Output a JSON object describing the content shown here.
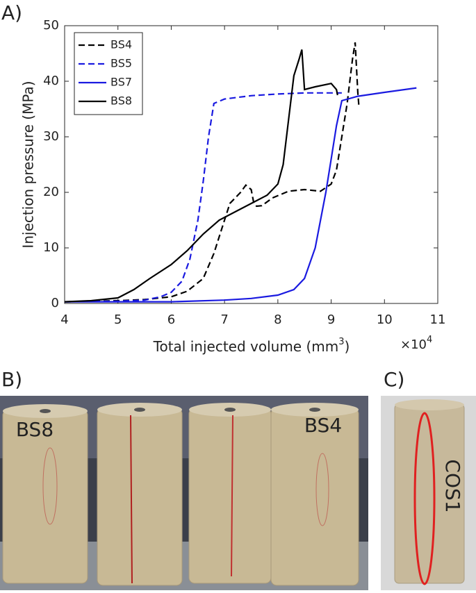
{
  "chart_data": {
    "type": "line",
    "panel_label": "A)",
    "xlabel": [
      "Total injected volume (mm",
      "3",
      ")"
    ],
    "ylabel": "Injection pressure (MPa)",
    "x_multiplier": {
      "base": "×10",
      "exponent": "4"
    },
    "xlim": [
      4,
      11
    ],
    "xticks": [
      4,
      5,
      6,
      7,
      8,
      9,
      10,
      11
    ],
    "ylim": [
      0,
      50
    ],
    "yticks": [
      0,
      10,
      20,
      30,
      40,
      50
    ],
    "grid": false,
    "legend": "top-left",
    "series": [
      {
        "name": "BS4",
        "color": "#000000",
        "dash": "dashed",
        "x": [
          4,
          5,
          5.5,
          6,
          6.3,
          6.6,
          6.8,
          7,
          7.1,
          7.3,
          7.4,
          7.5,
          7.55,
          7.6,
          7.7,
          7.9,
          8.2,
          8.5,
          8.8,
          9,
          9.1,
          9.2,
          9.3,
          9.35,
          9.4,
          9.45,
          9.5,
          9.52
        ],
        "values": [
          0.3,
          0.5,
          0.7,
          1.2,
          2.2,
          4.5,
          9,
          15,
          18,
          20,
          21.3,
          20.5,
          18,
          17.5,
          17.6,
          19,
          20.2,
          20.5,
          20.2,
          21.5,
          24,
          30,
          36,
          40,
          44,
          47,
          38,
          35.5
        ]
      },
      {
        "name": "BS5",
        "color": "#1a1ae0",
        "dash": "dashed",
        "x": [
          4,
          5,
          5.5,
          5.8,
          6,
          6.2,
          6.35,
          6.5,
          6.6,
          6.7,
          6.8,
          7,
          7.5,
          8,
          8.5,
          9.2
        ],
        "values": [
          0.3,
          0.4,
          0.6,
          1.2,
          2,
          4,
          8,
          15,
          22,
          30,
          36,
          36.8,
          37.4,
          37.7,
          37.9,
          37.9
        ]
      },
      {
        "name": "BS7",
        "color": "#1a1ae0",
        "dash": "solid",
        "x": [
          4,
          6,
          7,
          7.5,
          8,
          8.3,
          8.5,
          8.7,
          8.9,
          9,
          9.1,
          9.2,
          9.5,
          10,
          10.6
        ],
        "values": [
          0.3,
          0.3,
          0.6,
          0.9,
          1.5,
          2.5,
          4.5,
          10,
          20,
          26,
          32,
          36.5,
          37.3,
          38,
          38.8
        ]
      },
      {
        "name": "BS8",
        "color": "#000000",
        "dash": "solid",
        "x": [
          4,
          4.5,
          5,
          5.3,
          5.6,
          6,
          6.3,
          6.6,
          6.9,
          7.2,
          7.6,
          7.8,
          8,
          8.1,
          8.2,
          8.3,
          8.4,
          8.45,
          8.5,
          8.7,
          9,
          9.1,
          9.12
        ],
        "values": [
          0.3,
          0.5,
          1,
          2.5,
          4.5,
          7,
          9.5,
          12.5,
          15,
          16.5,
          18.5,
          19.5,
          21.5,
          25,
          33,
          41,
          44,
          45.7,
          38.5,
          39,
          39.6,
          38.5,
          37.5
        ]
      }
    ]
  },
  "photos": {
    "b_label": "B)",
    "c_label": "C)",
    "b_samples": [
      "BS8",
      "BS4"
    ],
    "c_sample": "COS1"
  }
}
